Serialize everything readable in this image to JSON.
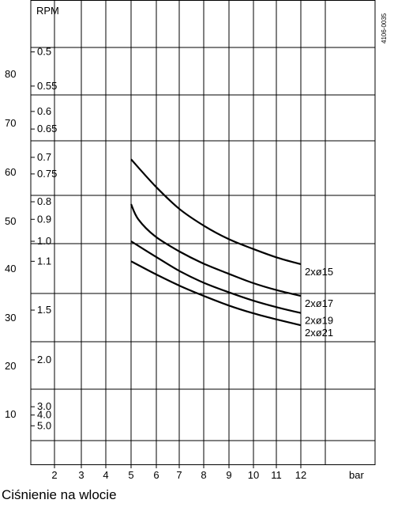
{
  "chart_data": {
    "type": "line",
    "title": "",
    "code": "4106-0035",
    "rpm_header": "RPM",
    "xlabel": "Ciśnienie na wlocie",
    "x_unit": "bar",
    "x_ticks": [
      "2",
      "3",
      "4",
      "5",
      "6",
      "7",
      "8",
      "9",
      "10",
      "11",
      "12"
    ],
    "xlim": [
      1,
      15
    ],
    "ylim": [
      0,
      92
    ],
    "y_ticks_left": [
      "10",
      "20",
      "30",
      "40",
      "50",
      "60",
      "70",
      "80"
    ],
    "secondary_scale": [
      {
        "label": "0.5",
        "y": 84.5
      },
      {
        "label": "0.55",
        "y": 77.5
      },
      {
        "label": "0.6",
        "y": 72.3
      },
      {
        "label": "0.65",
        "y": 68.7
      },
      {
        "label": "0.7",
        "y": 62.9
      },
      {
        "label": "0.75",
        "y": 59.5
      },
      {
        "label": "0.8",
        "y": 53.8
      },
      {
        "label": "0.9",
        "y": 50.2
      },
      {
        "label": "1.0",
        "y": 45.7
      },
      {
        "label": "1.1",
        "y": 41.6
      },
      {
        "label": "1.5",
        "y": 31.6
      },
      {
        "label": "2.0",
        "y": 21.4
      },
      {
        "label": "3.0",
        "y": 11.8
      },
      {
        "label": "4.0",
        "y": 10.1
      },
      {
        "label": "5.0",
        "y": 7.9
      }
    ],
    "grid": true,
    "series": [
      {
        "name": "2xø15",
        "x": [
          5,
          6,
          7,
          8,
          9,
          10,
          11,
          12
        ],
        "y": [
          62.5,
          57.0,
          52.3,
          48.9,
          46.2,
          44.2,
          42.4,
          41.0
        ]
      },
      {
        "name": "2xø17",
        "x": [
          5,
          5.3,
          6,
          7,
          8,
          9,
          10,
          11,
          12
        ],
        "y": [
          53.3,
          50.2,
          46.7,
          43.6,
          41.1,
          39.1,
          37.2,
          35.7,
          34.5
        ]
      },
      {
        "name": "2xø19",
        "x": [
          5,
          6,
          7,
          8,
          9,
          10,
          11,
          12
        ],
        "y": [
          45.7,
          42.6,
          39.6,
          37.2,
          35.3,
          33.6,
          32.2,
          31.0
        ]
      },
      {
        "name": "2xø21",
        "x": [
          5,
          6,
          7,
          8,
          9,
          10,
          11,
          12
        ],
        "y": [
          41.6,
          39.0,
          36.6,
          34.5,
          32.6,
          31.0,
          29.7,
          28.5
        ]
      }
    ]
  }
}
